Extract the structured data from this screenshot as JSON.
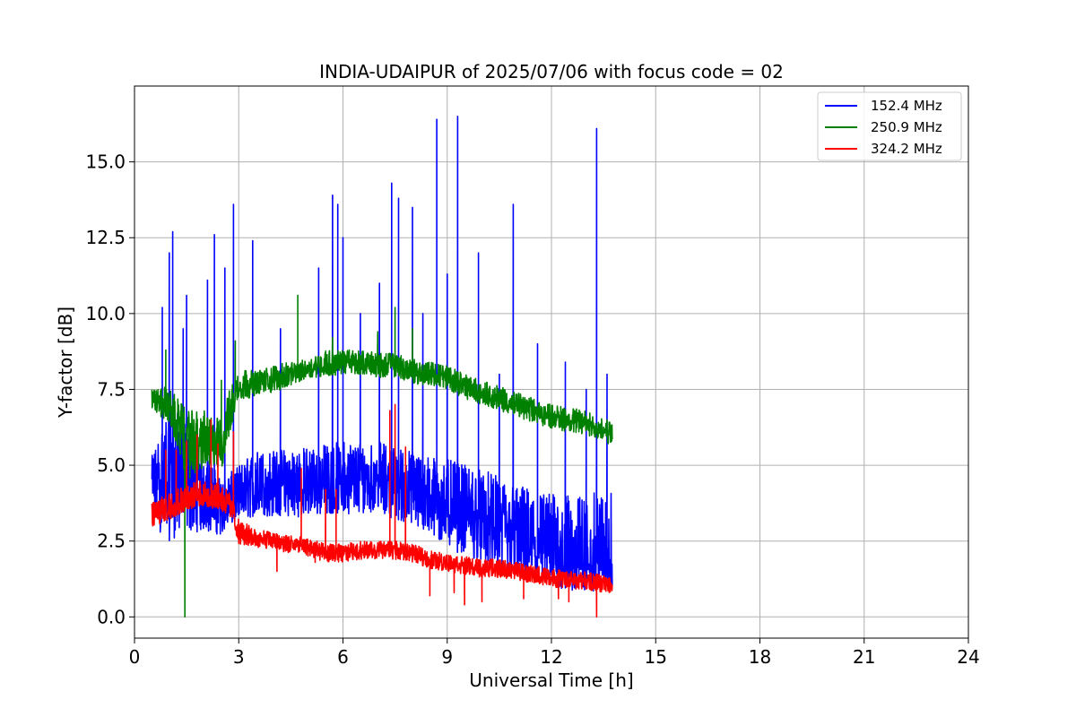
{
  "chart_data": {
    "type": "line",
    "title": "INDIA-UDAIPUR of 2025/07/06 with focus code = 02",
    "xlabel": "Universal Time [h]",
    "ylabel": "Y-factor [dB]",
    "xlim": [
      0,
      24
    ],
    "ylim": [
      -0.7,
      17.5
    ],
    "xticks": [
      0,
      3,
      6,
      9,
      12,
      15,
      18,
      21,
      24
    ],
    "yticks": [
      0.0,
      2.5,
      5.0,
      7.5,
      10.0,
      12.5,
      15.0
    ],
    "ytick_labels": [
      "0.0",
      "2.5",
      "5.0",
      "7.5",
      "10.0",
      "12.5",
      "15.0"
    ],
    "grid": true,
    "legend_position": "top-right",
    "series": [
      {
        "name": "152.4 MHz",
        "color": "#0000ff",
        "x": [
          0.5,
          1.0,
          1.5,
          2.0,
          2.5,
          3.0,
          3.5,
          4.0,
          4.5,
          5.0,
          5.5,
          6.0,
          6.5,
          7.0,
          7.5,
          8.0,
          8.5,
          9.0,
          9.5,
          10.0,
          10.5,
          11.0,
          11.5,
          12.0,
          12.5,
          13.0,
          13.5,
          13.75
        ],
        "y": [
          4.2,
          4.8,
          4.6,
          4.2,
          3.6,
          3.8,
          4.2,
          4.3,
          4.2,
          4.3,
          4.3,
          4.4,
          4.5,
          4.6,
          4.5,
          4.2,
          3.9,
          3.7,
          3.4,
          3.2,
          2.9,
          2.7,
          2.3,
          2.0,
          1.9,
          1.8,
          1.8,
          1.9
        ],
        "noise_low": [
          3.0,
          2.5,
          2.8,
          2.8,
          2.7,
          3.2,
          3.3,
          3.3,
          3.3,
          3.3,
          3.4,
          3.4,
          3.4,
          3.5,
          3.2,
          3.0,
          2.6,
          2.3,
          2.0,
          1.8,
          1.4,
          1.3,
          1.1,
          1.0,
          0.8,
          0.8,
          0.9,
          1.0
        ],
        "noise_high": [
          5.3,
          7.0,
          6.5,
          5.5,
          4.5,
          5.0,
          5.5,
          5.5,
          5.6,
          5.6,
          5.7,
          5.8,
          5.8,
          5.8,
          5.6,
          5.5,
          5.3,
          5.2,
          5.0,
          4.9,
          4.6,
          4.4,
          4.2,
          4.1,
          4.0,
          4.0,
          4.2,
          4.4
        ],
        "spikes": [
          [
            0.8,
            10.2
          ],
          [
            1.0,
            12.0
          ],
          [
            1.1,
            12.7
          ],
          [
            1.4,
            9.5
          ],
          [
            1.5,
            10.6
          ],
          [
            2.1,
            11.1
          ],
          [
            2.3,
            12.6
          ],
          [
            2.6,
            11.5
          ],
          [
            2.85,
            13.6
          ],
          [
            3.4,
            12.4
          ],
          [
            4.2,
            9.5
          ],
          [
            5.3,
            11.5
          ],
          [
            5.7,
            13.9
          ],
          [
            5.85,
            13.6
          ],
          [
            6.0,
            12.5
          ],
          [
            6.5,
            10.0
          ],
          [
            7.05,
            11.0
          ],
          [
            7.4,
            14.3
          ],
          [
            7.6,
            13.8
          ],
          [
            8.0,
            13.5
          ],
          [
            8.3,
            10.0
          ],
          [
            8.7,
            16.4
          ],
          [
            9.0,
            11.3
          ],
          [
            9.3,
            16.5
          ],
          [
            9.9,
            12.0
          ],
          [
            10.5,
            8.0
          ],
          [
            10.9,
            13.6
          ],
          [
            11.6,
            9.0
          ],
          [
            12.4,
            8.4
          ],
          [
            13.0,
            7.5
          ],
          [
            13.3,
            16.1
          ],
          [
            13.6,
            8.0
          ]
        ]
      },
      {
        "name": "250.9 MHz",
        "color": "#008000",
        "x": [
          0.5,
          1.0,
          1.5,
          2.0,
          2.5,
          2.75,
          3.0,
          3.5,
          4.0,
          4.5,
          5.0,
          5.5,
          6.0,
          6.5,
          7.0,
          7.5,
          8.0,
          8.5,
          9.0,
          9.5,
          10.0,
          10.5,
          11.0,
          11.5,
          12.0,
          12.5,
          13.0,
          13.5,
          13.75
        ],
        "y": [
          7.2,
          6.9,
          5.6,
          5.8,
          5.6,
          6.8,
          7.6,
          7.7,
          7.8,
          8.0,
          8.2,
          8.3,
          8.4,
          8.4,
          8.3,
          8.3,
          8.1,
          8.0,
          7.9,
          7.6,
          7.4,
          7.2,
          7.0,
          6.8,
          6.6,
          6.5,
          6.4,
          6.1,
          6.0
        ],
        "noise_low": [
          6.8,
          6.4,
          4.5,
          4.9,
          4.8,
          6.0,
          7.1,
          7.3,
          7.4,
          7.6,
          7.9,
          7.9,
          8.0,
          8.0,
          7.9,
          7.9,
          7.7,
          7.6,
          7.5,
          7.2,
          7.0,
          6.8,
          6.6,
          6.4,
          6.2,
          6.1,
          6.0,
          5.8,
          5.6
        ],
        "noise_high": [
          7.5,
          7.6,
          6.8,
          6.8,
          6.5,
          7.6,
          8.2,
          8.1,
          8.3,
          8.4,
          8.5,
          8.8,
          8.8,
          8.8,
          8.7,
          8.7,
          8.5,
          8.4,
          8.3,
          8.0,
          7.8,
          7.6,
          7.4,
          7.2,
          7.0,
          6.9,
          6.8,
          6.5,
          6.4
        ],
        "spikes": [
          [
            0.9,
            8.8
          ],
          [
            1.45,
            0.0
          ],
          [
            2.5,
            7.8
          ],
          [
            2.9,
            9.1
          ],
          [
            4.7,
            10.6
          ],
          [
            5.7,
            9.2
          ],
          [
            7.0,
            9.4
          ],
          [
            7.5,
            10.2
          ],
          [
            8.0,
            9.5
          ],
          [
            13.6,
            6.5
          ]
        ]
      },
      {
        "name": "324.2 MHz",
        "color": "#ff0000",
        "x": [
          0.5,
          1.0,
          1.5,
          2.0,
          2.5,
          2.8,
          3.0,
          3.5,
          4.0,
          4.5,
          5.0,
          5.5,
          6.0,
          6.5,
          7.0,
          7.5,
          8.0,
          8.5,
          9.0,
          9.5,
          10.0,
          10.5,
          11.0,
          11.5,
          12.0,
          12.5,
          13.0,
          13.5,
          13.75
        ],
        "y": [
          3.3,
          3.6,
          3.9,
          4.0,
          3.9,
          3.6,
          2.8,
          2.6,
          2.5,
          2.4,
          2.3,
          2.1,
          2.1,
          2.2,
          2.2,
          2.2,
          2.1,
          1.9,
          1.8,
          1.7,
          1.6,
          1.6,
          1.5,
          1.4,
          1.3,
          1.2,
          1.2,
          1.1,
          1.1
        ],
        "noise_low": [
          2.9,
          3.2,
          3.5,
          3.6,
          3.5,
          3.2,
          2.4,
          2.3,
          2.2,
          2.1,
          2.0,
          1.8,
          1.8,
          1.9,
          1.9,
          1.9,
          1.8,
          1.6,
          1.5,
          1.4,
          1.3,
          1.3,
          1.2,
          1.1,
          1.0,
          0.9,
          0.9,
          0.8,
          0.8
        ],
        "noise_high": [
          3.8,
          4.2,
          4.4,
          4.5,
          4.4,
          4.0,
          3.2,
          2.9,
          2.8,
          2.7,
          2.6,
          2.4,
          2.4,
          2.5,
          2.5,
          2.5,
          2.4,
          2.2,
          2.1,
          2.0,
          1.9,
          1.9,
          1.8,
          1.7,
          1.6,
          1.5,
          1.5,
          1.4,
          1.4
        ],
        "spikes": [
          [
            0.9,
            5.5
          ],
          [
            1.2,
            5.5
          ],
          [
            1.5,
            5.8
          ],
          [
            1.8,
            6.0
          ],
          [
            2.2,
            6.5
          ],
          [
            2.4,
            5.7
          ],
          [
            2.85,
            6.1
          ],
          [
            4.1,
            1.5
          ],
          [
            4.8,
            4.9
          ],
          [
            5.2,
            1.8
          ],
          [
            5.5,
            4.2
          ],
          [
            5.8,
            4.2
          ],
          [
            7.35,
            6.8
          ],
          [
            7.5,
            7.0
          ],
          [
            7.8,
            5.6
          ],
          [
            8.5,
            0.7
          ],
          [
            9.2,
            0.8
          ],
          [
            9.5,
            0.4
          ],
          [
            10.0,
            0.5
          ],
          [
            11.2,
            0.6
          ],
          [
            12.2,
            0.6
          ],
          [
            12.5,
            0.5
          ],
          [
            13.3,
            0.0
          ]
        ]
      }
    ]
  }
}
